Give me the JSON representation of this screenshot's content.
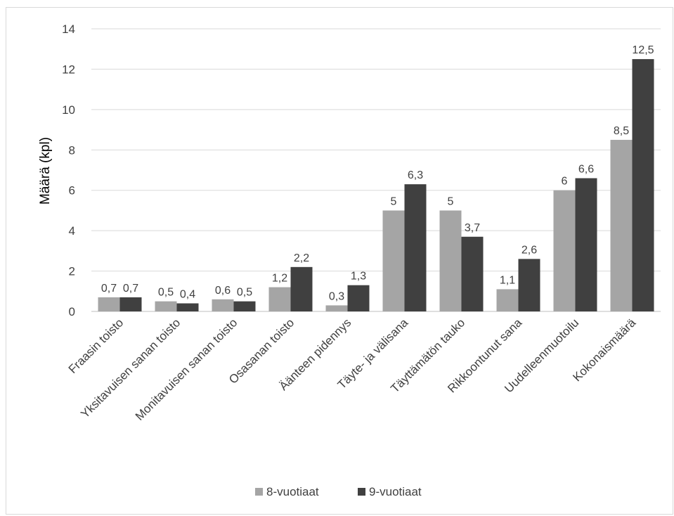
{
  "chart_data": {
    "type": "bar",
    "title": "",
    "xlabel": "",
    "ylabel": "Määrä (kpl)",
    "ylim": [
      0,
      14
    ],
    "yticks": [
      0,
      2,
      4,
      6,
      8,
      10,
      12,
      14
    ],
    "grid": true,
    "legend_position": "bottom",
    "categories": [
      "Fraasin toisto",
      "Yksitavuisen sanan toisto",
      "Monitavuisen sanan toisto",
      "Osasanan toisto",
      "Äänteen pidennys",
      "Täyte- ja välisana",
      "Täyttämätön tauko",
      "Rikkoontunut sana",
      "Uudelleenmuotoilu",
      "Kokonaismäärä"
    ],
    "series": [
      {
        "name": "8-vuotiaat",
        "color": "#a5a5a5",
        "values": [
          0.7,
          0.5,
          0.6,
          1.2,
          0.3,
          5,
          5,
          1.1,
          6,
          8.5
        ],
        "labels": [
          "0,7",
          "0,5",
          "0,6",
          "1,2",
          "0,3",
          "5",
          "5",
          "1,1",
          "6",
          "8,5"
        ]
      },
      {
        "name": "9-vuotiaat",
        "color": "#404040",
        "values": [
          0.7,
          0.4,
          0.5,
          2.2,
          1.3,
          6.3,
          3.7,
          2.6,
          6.6,
          12.5
        ],
        "labels": [
          "0,7",
          "0,4",
          "0,5",
          "2,2",
          "1,3",
          "6,3",
          "3,7",
          "2,6",
          "6,6",
          "12,5"
        ]
      }
    ]
  }
}
